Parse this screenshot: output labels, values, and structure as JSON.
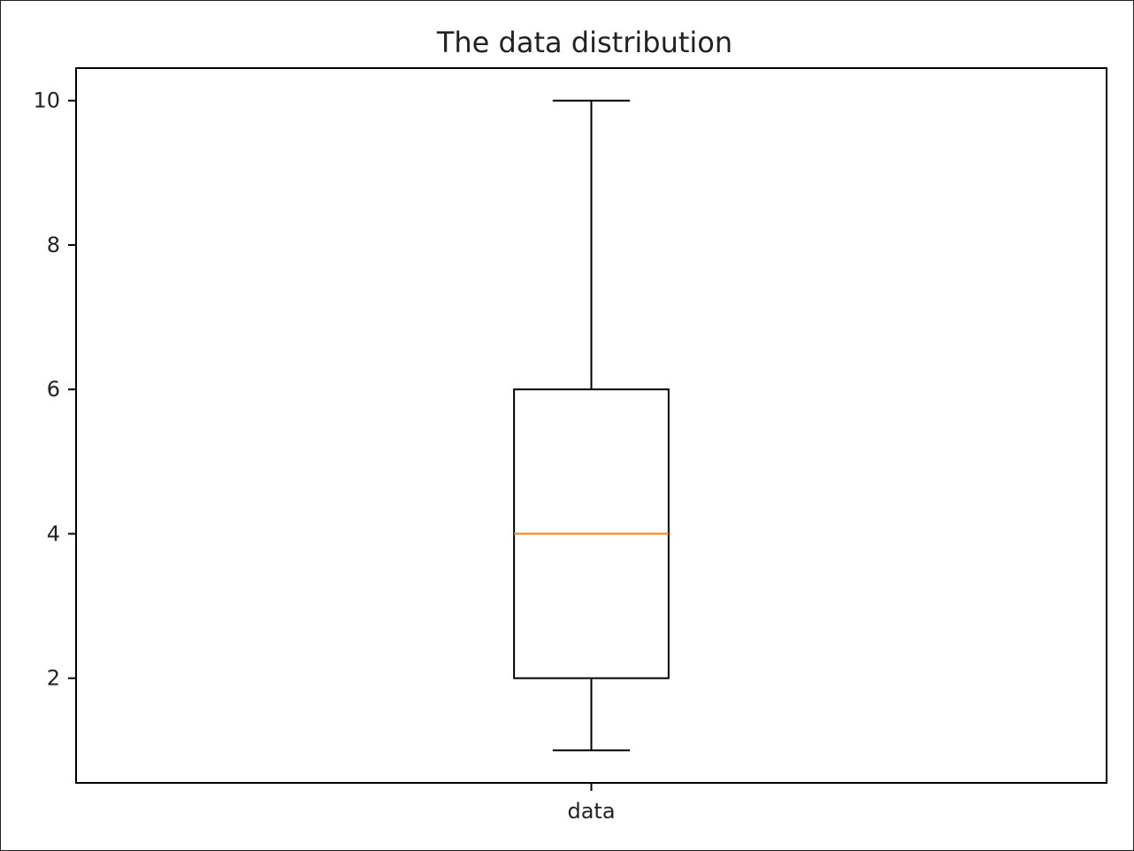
{
  "chart_data": {
    "type": "box",
    "title": "The data distribution",
    "xlabel": "",
    "ylabel": "",
    "categories": [
      "data"
    ],
    "boxes": [
      {
        "category": "data",
        "whisker_low": 1,
        "q1": 2,
        "median": 4,
        "q3": 6,
        "whisker_high": 10
      }
    ],
    "ylim": [
      0.55,
      10.45
    ],
    "yticks": [
      2,
      4,
      6,
      8,
      10
    ],
    "grid": false,
    "colors": {
      "box": "#000000",
      "median": "#ff7f0e",
      "frame": "#000000"
    }
  }
}
